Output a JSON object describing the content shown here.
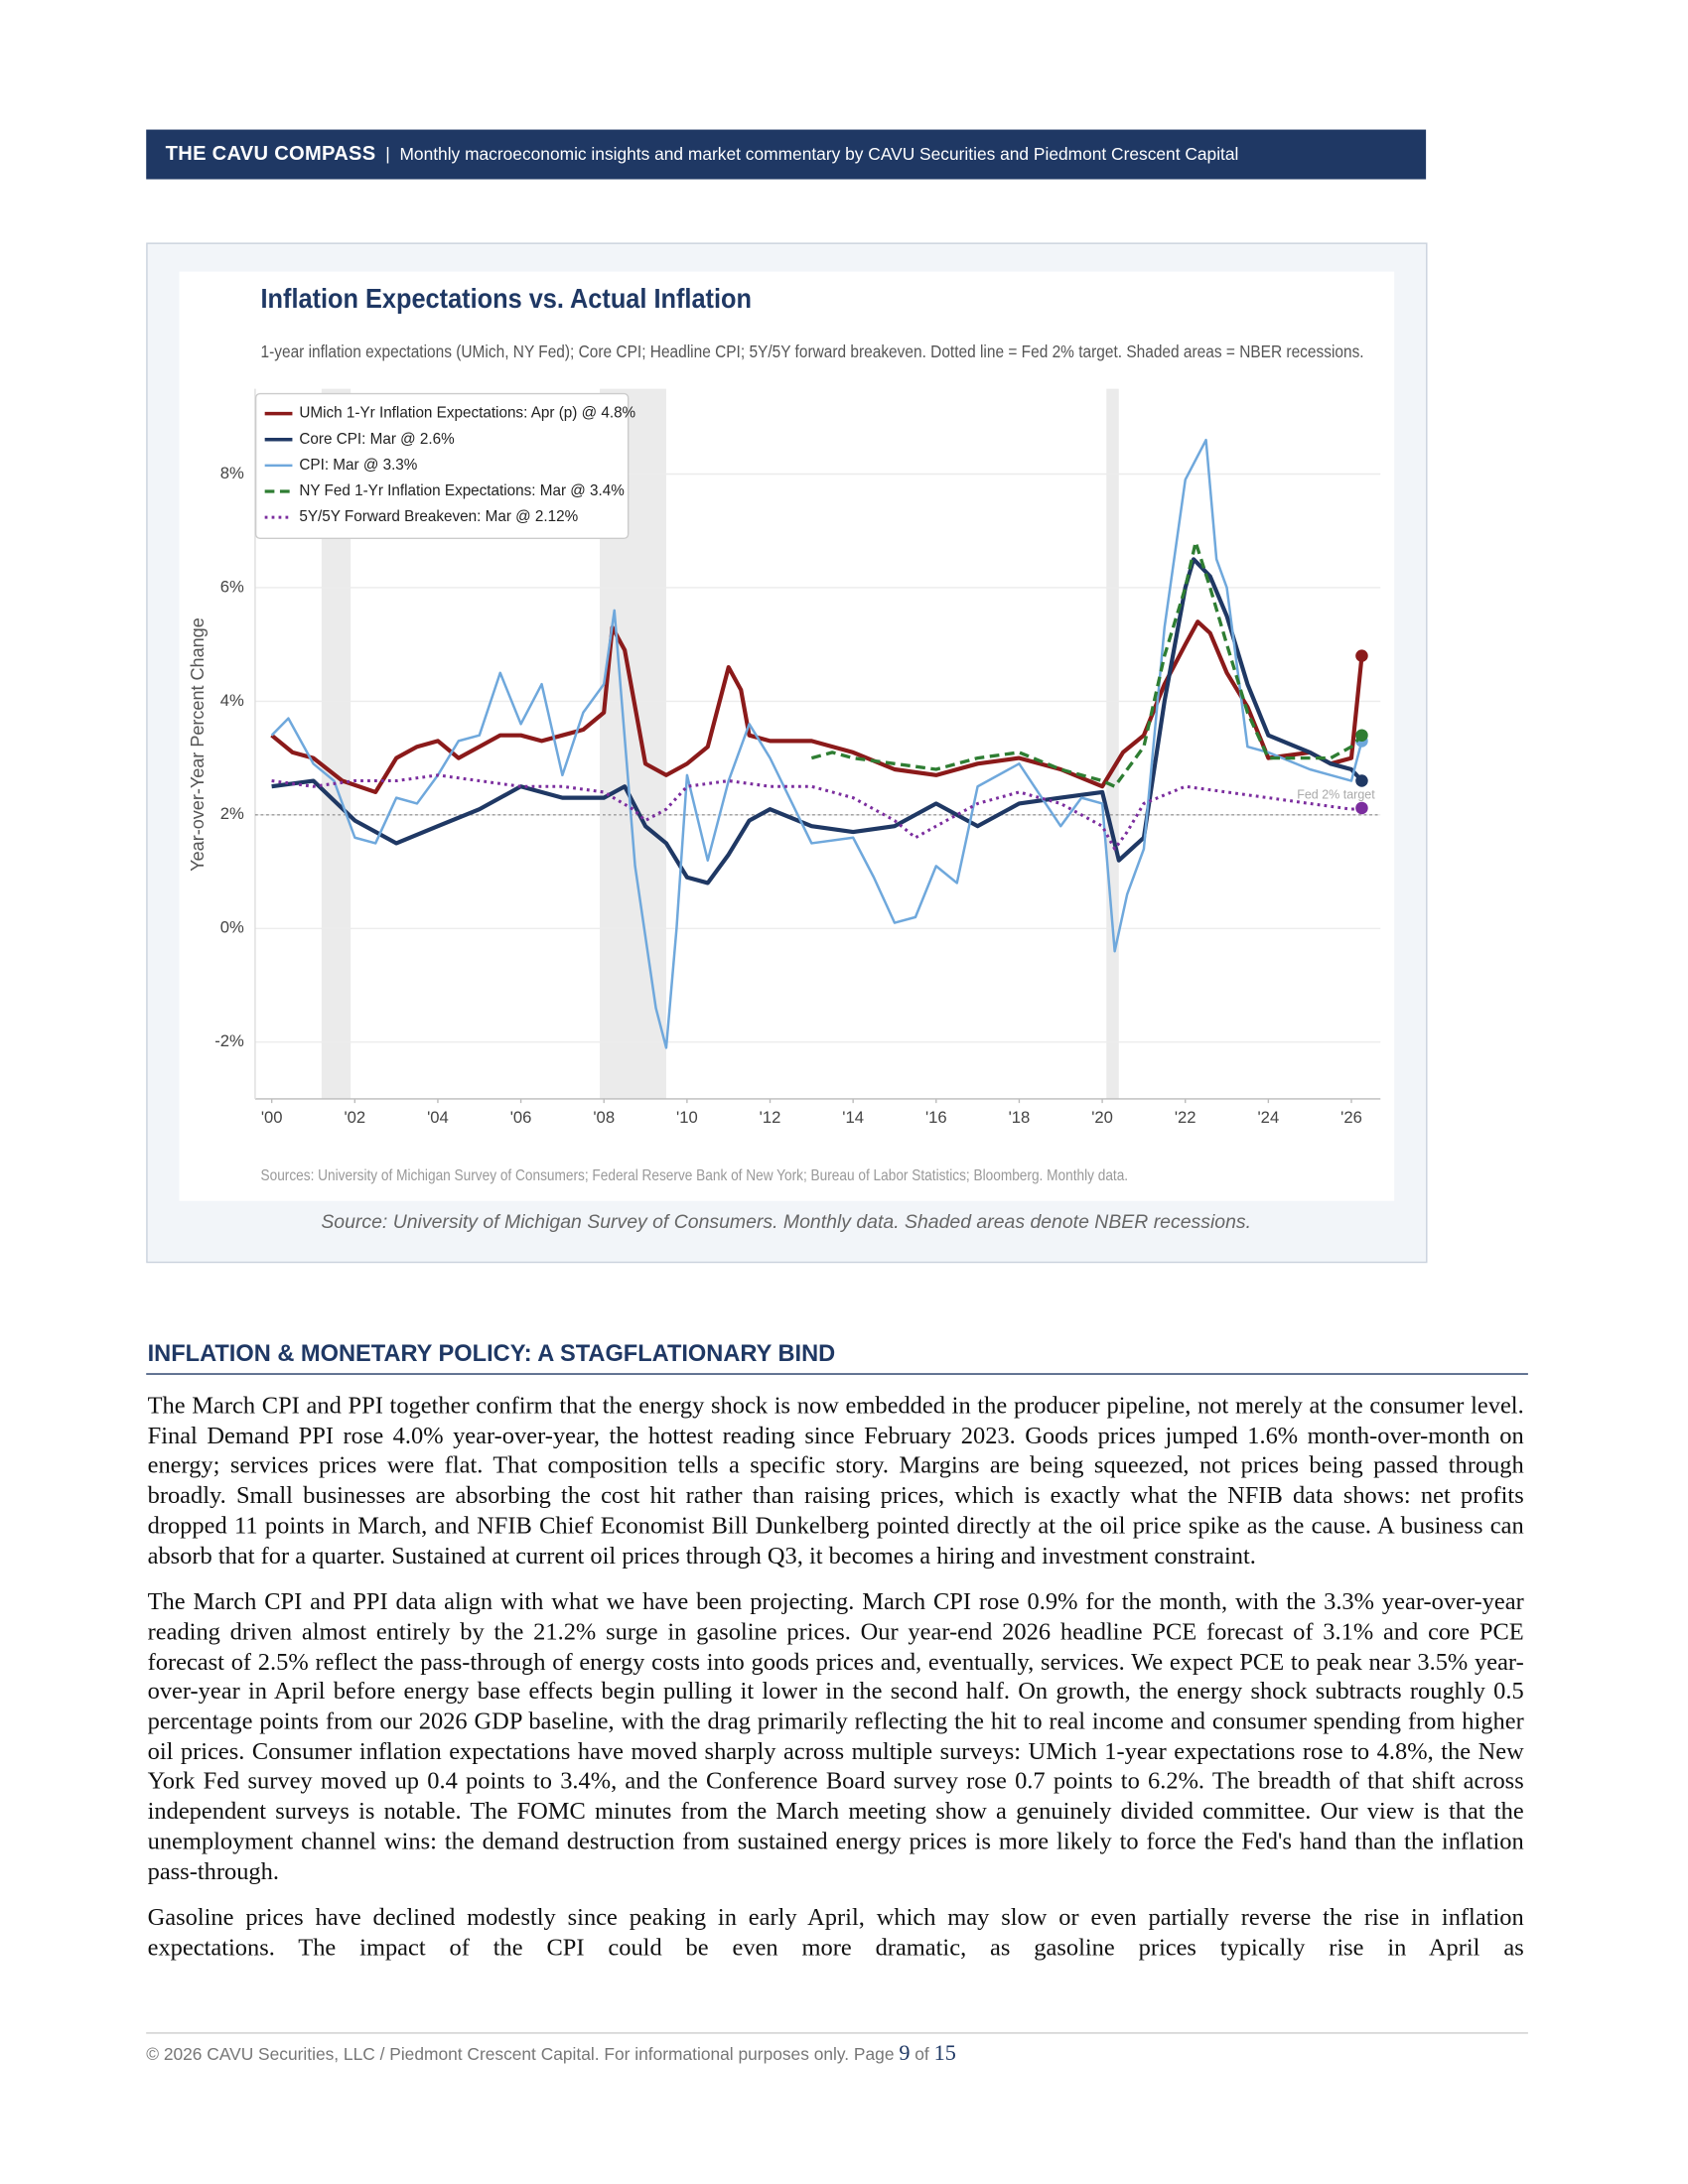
{
  "header": {
    "title": "THE CAVU COMPASS",
    "separator": "|",
    "subtitle": "Monthly macroeconomic insights and market commentary by CAVU Securities and Piedmont Crescent Capital"
  },
  "chart_data": {
    "type": "line",
    "title": "Inflation Expectations vs. Actual Inflation",
    "subtitle": "1-year inflation expectations (UMich, NY Fed); Core CPI; Headline CPI; 5Y/5Y forward breakeven. Dotted line = Fed 2% target. Shaded areas = NBER recessions.",
    "ylabel": "Year-over-Year Percent Change",
    "sources": "Sources: University of Michigan Survey of Consumers; Federal Reserve Bank of New York; Bureau of Labor Statistics; Bloomberg. Monthly data.",
    "caption": "Source: University of Michigan Survey of Consumers. Monthly data. Shaded areas denote NBER recessions.",
    "xlim": [
      1999.6,
      2026.7
    ],
    "ylim": [
      -3,
      9.5
    ],
    "xticks": [
      {
        "value": 2000,
        "label": "'00"
      },
      {
        "value": 2002,
        "label": "'02"
      },
      {
        "value": 2004,
        "label": "'04"
      },
      {
        "value": 2006,
        "label": "'06"
      },
      {
        "value": 2008,
        "label": "'08"
      },
      {
        "value": 2010,
        "label": "'10"
      },
      {
        "value": 2012,
        "label": "'12"
      },
      {
        "value": 2014,
        "label": "'14"
      },
      {
        "value": 2016,
        "label": "'16"
      },
      {
        "value": 2018,
        "label": "'18"
      },
      {
        "value": 2020,
        "label": "'20"
      },
      {
        "value": 2022,
        "label": "'22"
      },
      {
        "value": 2024,
        "label": "'24"
      },
      {
        "value": 2026,
        "label": "'26"
      }
    ],
    "yticks": [
      {
        "value": -2,
        "label": "-2%"
      },
      {
        "value": 0,
        "label": "0%"
      },
      {
        "value": 2,
        "label": "2%"
      },
      {
        "value": 4,
        "label": "4%"
      },
      {
        "value": 6,
        "label": "6%"
      },
      {
        "value": 8,
        "label": "8%"
      }
    ],
    "grid": true,
    "legend": "upper left",
    "recessions": [
      [
        2001.2,
        2001.9
      ],
      [
        2007.9,
        2009.5
      ],
      [
        2020.1,
        2020.4
      ]
    ],
    "target": {
      "value": 2,
      "label": "Fed 2% target"
    },
    "series": [
      {
        "name": "UMich 1-Yr Inflation Expectations: Apr (p) @ 4.8%",
        "color": "#8b1a1a",
        "style": "solid",
        "width": 3,
        "x": [
          2000,
          2000.5,
          2001,
          2001.7,
          2002.5,
          2003,
          2003.5,
          2004,
          2004.5,
          2005,
          2005.5,
          2006,
          2006.5,
          2007,
          2007.5,
          2008,
          2008.2,
          2008.5,
          2009,
          2009.5,
          2010,
          2010.5,
          2011,
          2011.3,
          2011.5,
          2012,
          2013,
          2014,
          2015,
          2016,
          2017,
          2018,
          2019,
          2020,
          2020.5,
          2021,
          2021.5,
          2022,
          2022.3,
          2022.6,
          2023,
          2023.5,
          2024,
          2025,
          2025.5,
          2026,
          2026.25
        ],
        "values": [
          3.4,
          3.1,
          3.0,
          2.6,
          2.4,
          3.0,
          3.2,
          3.3,
          3.0,
          3.2,
          3.4,
          3.4,
          3.3,
          3.4,
          3.5,
          3.8,
          5.3,
          4.9,
          2.9,
          2.7,
          2.9,
          3.2,
          4.6,
          4.2,
          3.4,
          3.3,
          3.3,
          3.1,
          2.8,
          2.7,
          2.9,
          3.0,
          2.8,
          2.5,
          3.1,
          3.4,
          4.3,
          5.0,
          5.4,
          5.2,
          4.5,
          3.9,
          3.0,
          3.1,
          2.9,
          3.0,
          4.8
        ]
      },
      {
        "name": "Core CPI: Mar @ 2.6%",
        "color": "#1f3864",
        "style": "solid",
        "width": 3,
        "x": [
          2000,
          2001,
          2002,
          2003,
          2004,
          2005,
          2006,
          2007,
          2008,
          2008.5,
          2009,
          2009.5,
          2010,
          2010.5,
          2011,
          2011.5,
          2012,
          2013,
          2014,
          2015,
          2016,
          2017,
          2018,
          2019,
          2020,
          2020.4,
          2021,
          2021.5,
          2022,
          2022.2,
          2022.6,
          2023,
          2023.5,
          2024,
          2025,
          2025.5,
          2026,
          2026.25
        ],
        "values": [
          2.5,
          2.6,
          1.9,
          1.5,
          1.8,
          2.1,
          2.5,
          2.3,
          2.3,
          2.5,
          1.8,
          1.5,
          0.9,
          0.8,
          1.3,
          1.9,
          2.1,
          1.8,
          1.7,
          1.8,
          2.2,
          1.8,
          2.2,
          2.3,
          2.4,
          1.2,
          1.6,
          4.0,
          6.0,
          6.5,
          6.2,
          5.5,
          4.3,
          3.4,
          3.1,
          2.9,
          2.8,
          2.6
        ]
      },
      {
        "name": "CPI: Mar @ 3.3%",
        "color": "#6fa8dc",
        "style": "solid",
        "width": 1.8,
        "x": [
          2000,
          2000.4,
          2001,
          2001.5,
          2002,
          2002.5,
          2003,
          2003.5,
          2004,
          2004.5,
          2005,
          2005.5,
          2006,
          2006.5,
          2007,
          2007.5,
          2008,
          2008.25,
          2008.75,
          2009.25,
          2009.5,
          2009.75,
          2010,
          2010.5,
          2011,
          2011.5,
          2012,
          2013,
          2014,
          2014.5,
          2015,
          2015.5,
          2016,
          2016.5,
          2017,
          2018,
          2019,
          2019.5,
          2020,
          2020.3,
          2020.6,
          2021,
          2021.5,
          2022,
          2022.5,
          2022.75,
          2023,
          2023.5,
          2024,
          2025,
          2025.5,
          2026,
          2026.25
        ],
        "values": [
          3.4,
          3.7,
          2.9,
          2.6,
          1.6,
          1.5,
          2.3,
          2.2,
          2.7,
          3.3,
          3.4,
          4.5,
          3.6,
          4.3,
          2.7,
          3.8,
          4.3,
          5.6,
          1.1,
          -1.4,
          -2.1,
          0.0,
          2.7,
          1.2,
          2.6,
          3.6,
          3.0,
          1.5,
          1.6,
          0.9,
          0.1,
          0.2,
          1.1,
          0.8,
          2.5,
          2.9,
          1.8,
          2.3,
          2.2,
          -0.4,
          0.6,
          1.4,
          5.3,
          7.9,
          8.6,
          6.5,
          6.0,
          3.2,
          3.1,
          2.8,
          2.7,
          2.6,
          3.3
        ]
      },
      {
        "name": "NY Fed 1-Yr Inflation Expectations: Mar @ 3.4%",
        "color": "#2e7d32",
        "style": "dashed",
        "width": 2.4,
        "x": [
          2013,
          2013.5,
          2014,
          2015,
          2016,
          2017,
          2018,
          2019,
          2020,
          2020.3,
          2021,
          2021.5,
          2022,
          2022.25,
          2022.6,
          2023,
          2023.5,
          2024,
          2025,
          2025.5,
          2026,
          2026.25
        ],
        "values": [
          3.0,
          3.1,
          3.0,
          2.9,
          2.8,
          3.0,
          3.1,
          2.8,
          2.6,
          2.5,
          3.2,
          4.8,
          6.0,
          6.8,
          6.0,
          5.0,
          3.8,
          3.0,
          3.0,
          3.0,
          3.2,
          3.4
        ]
      },
      {
        "name": "5Y/5Y Forward Breakeven: Mar @ 2.12%",
        "color": "#7b2d9e",
        "style": "dotted",
        "width": 2.2,
        "x": [
          2000,
          2001,
          2002,
          2003,
          2004,
          2005,
          2006,
          2007,
          2008,
          2008.7,
          2009,
          2009.5,
          2010,
          2011,
          2012,
          2013,
          2014,
          2015,
          2015.5,
          2016,
          2017,
          2018,
          2019,
          2020,
          2020.3,
          2020.6,
          2021,
          2022,
          2023,
          2024,
          2025,
          2026,
          2026.25
        ],
        "values": [
          2.6,
          2.5,
          2.6,
          2.6,
          2.7,
          2.6,
          2.5,
          2.5,
          2.4,
          2.1,
          1.9,
          2.1,
          2.5,
          2.6,
          2.5,
          2.5,
          2.3,
          1.9,
          1.6,
          1.8,
          2.2,
          2.4,
          2.2,
          1.8,
          1.4,
          1.7,
          2.2,
          2.5,
          2.4,
          2.3,
          2.2,
          2.1,
          2.12
        ]
      }
    ]
  },
  "section": {
    "heading": "INFLATION & MONETARY POLICY: A STAGFLATIONARY BIND",
    "paragraphs": [
      "The March CPI and PPI together confirm that the energy shock is now embedded in the producer pipeline, not merely at the consumer level. Final Demand PPI rose 4.0% year-over-year, the hottest reading since February 2023. Goods prices jumped 1.6% month-over-month on energy; services prices were flat. That composition tells a specific story. Margins are being squeezed, not prices being passed through broadly. Small businesses are absorbing the cost hit rather than raising prices, which is exactly what the NFIB data shows: net profits dropped 11 points in March, and NFIB Chief Economist Bill Dunkelberg pointed directly at the oil price spike as the cause. A business can absorb that for a quarter. Sustained at current oil prices through Q3, it becomes a hiring and investment constraint.",
      "The March CPI and PPI data align with what we have been projecting. March CPI rose 0.9% for the month, with the 3.3% year-over-year reading driven almost entirely by the 21.2% surge in gasoline prices. Our year-end 2026 headline PCE forecast of 3.1% and core PCE forecast of 2.5% reflect the pass-through of energy costs into goods prices and, eventually, services. We expect PCE to peak near 3.5% year-over-year in April before energy base effects begin pulling it lower in the second half. On growth, the energy shock subtracts roughly 0.5 percentage points from our 2026 GDP baseline, with the drag primarily reflecting the hit to real income and consumer spending from higher oil prices. Consumer inflation expectations have moved sharply across multiple surveys: UMich 1-year expectations rose to 4.8%, the New York Fed survey moved up 0.4 points to 3.4%, and the Conference Board survey rose 0.7 points to 6.2%. The breadth of that shift across independent surveys is notable. The FOMC minutes from the March meeting show a genuinely divided committee. Our view is that the unemployment channel wins: the demand destruction from sustained energy prices is more likely to force the Fed's hand than the inflation pass-through.",
      "Gasoline prices have declined modestly since peaking in early April, which may slow or even partially reverse the rise in inflation expectations. The impact of the CPI could be even more dramatic, as gasoline prices typically rise in April as"
    ]
  },
  "footer": {
    "text": "© 2026 CAVU Securities, LLC / Piedmont Crescent Capital. For informational purposes only. Page",
    "page": 9,
    "of": "of",
    "total": 15
  }
}
